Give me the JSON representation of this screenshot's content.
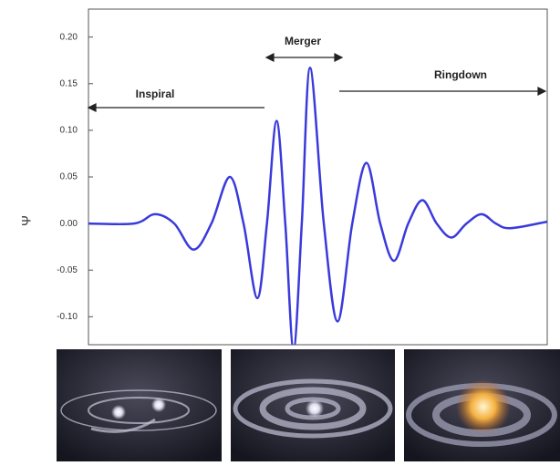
{
  "chart_data": {
    "type": "line",
    "y_label": "Ψ",
    "annotations": [
      "Inspiral",
      "Merger",
      "Ringdown"
    ],
    "x": [
      0,
      10,
      14.5,
      18.7,
      22.9,
      26.8,
      30.8,
      33.8,
      36.8,
      38.9,
      41,
      42.9,
      44.7,
      46.5,
      48.3,
      51.3,
      54.3,
      57.5,
      60.6,
      63.6,
      66.6,
      69.7,
      72.8,
      75.9,
      79.1,
      82.4,
      85.7,
      88.8,
      92,
      100
    ],
    "series": [
      {
        "color": "#3a3adc",
        "values": [
          0,
          0,
          0.01,
          0,
          -0.028,
          0,
          0.05,
          0,
          -0.08,
          0,
          0.11,
          0,
          -0.135,
          0,
          0.167,
          0,
          -0.105,
          0,
          0.065,
          0,
          -0.04,
          0,
          0.025,
          0,
          -0.015,
          0,
          0.01,
          0,
          -0.005,
          0.002
        ]
      }
    ],
    "xlim": [
      0,
      100
    ],
    "ylim": [
      -0.13,
      0.23
    ],
    "yticks": [
      {
        "value": 0.2,
        "label": "0.20"
      },
      {
        "value": 0.15,
        "label": "0.15"
      },
      {
        "value": 0.1,
        "label": "0.10"
      },
      {
        "value": 0.05,
        "label": "0.05"
      },
      {
        "value": 0,
        "label": "0.00"
      },
      {
        "value": -0.05,
        "label": "-0.05"
      },
      {
        "value": -0.1,
        "label": "-0.10"
      }
    ]
  }
}
